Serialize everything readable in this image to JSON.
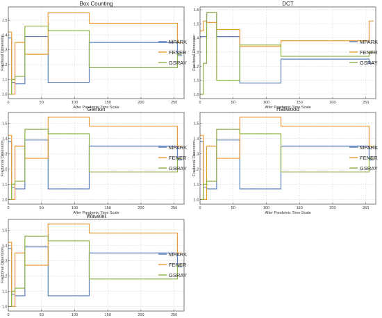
{
  "colors": {
    "MPARK": "#5b7fbf",
    "FENER": "#ec9a36",
    "GSRAY": "#8db146",
    "grid": "#d9d9d9",
    "frame": "#555555"
  },
  "chart_data": [
    {
      "type": "line",
      "title": "Box Counting",
      "xlabel": "After Pandemic Time Scale",
      "ylabel": "Fractional Dimension",
      "xlim": [
        0,
        265
      ],
      "ylim": [
        0.97,
        1.59
      ],
      "xticks": [
        0,
        50,
        100,
        150,
        200,
        250
      ],
      "yticks": [
        1.0,
        1.1,
        1.2,
        1.3,
        1.4,
        1.5
      ],
      "grid": true,
      "legend": "right",
      "series": [
        {
          "name": "MPARK",
          "step_x": [
            0,
            5,
            10,
            25,
            60,
            122,
            255,
            262
          ],
          "step_y": [
            1.38,
            1.08,
            1.07,
            1.39,
            1.08,
            1.35,
            1.26,
            1.26
          ]
        },
        {
          "name": "FENER",
          "step_x": [
            0,
            5,
            10,
            25,
            60,
            122,
            255,
            262
          ],
          "step_y": [
            1.42,
            1.0,
            1.35,
            1.27,
            1.55,
            1.48,
            1.35,
            1.35
          ]
        },
        {
          "name": "GSRAY",
          "step_x": [
            0,
            5,
            10,
            25,
            60,
            122,
            255,
            262
          ],
          "step_y": [
            1.0,
            1.1,
            1.12,
            1.46,
            1.43,
            1.18,
            1.27,
            1.27
          ]
        }
      ]
    },
    {
      "type": "line",
      "title": "DCT",
      "xlabel": "After Pandemic Time Scale",
      "ylabel": "Fractional Dimension",
      "xlim": [
        0,
        265
      ],
      "ylim": [
        0.97,
        1.62
      ],
      "xticks": [
        0,
        50,
        100,
        150,
        200,
        250
      ],
      "yticks": [
        1.0,
        1.1,
        1.2,
        1.3,
        1.4,
        1.5,
        1.6
      ],
      "grid": true,
      "legend": "right",
      "series": [
        {
          "name": "MPARK",
          "step_x": [
            0,
            5,
            10,
            25,
            60,
            122,
            255,
            262
          ],
          "step_y": [
            1.41,
            1.41,
            1.58,
            1.41,
            1.08,
            1.25,
            1.22,
            1.22
          ]
        },
        {
          "name": "FENER",
          "step_x": [
            0,
            5,
            10,
            25,
            60,
            122,
            255,
            262
          ],
          "step_y": [
            1.45,
            1.52,
            1.51,
            1.46,
            1.34,
            1.38,
            1.52,
            1.52
          ]
        },
        {
          "name": "GSRAY",
          "step_x": [
            0,
            5,
            10,
            25,
            60,
            122,
            255,
            262
          ],
          "step_y": [
            1.0,
            1.22,
            1.58,
            1.1,
            1.35,
            1.27,
            1.3,
            1.3
          ]
        }
      ]
    },
    {
      "type": "line",
      "title": "Genton",
      "xlabel": "After Pandemic Time Scale",
      "ylabel": "Fractional Dimension",
      "xlim": [
        0,
        265
      ],
      "ylim": [
        0.97,
        1.57
      ],
      "xticks": [
        0,
        50,
        100,
        150,
        200,
        250
      ],
      "yticks": [
        1.0,
        1.1,
        1.2,
        1.3,
        1.4,
        1.5
      ],
      "grid": true,
      "legend": "right",
      "series": [
        {
          "name": "MPARK",
          "step_x": [
            0,
            5,
            10,
            25,
            60,
            122,
            255,
            262
          ],
          "step_y": [
            1.38,
            1.08,
            1.07,
            1.39,
            1.07,
            1.35,
            1.26,
            1.26
          ]
        },
        {
          "name": "FENER",
          "step_x": [
            0,
            5,
            10,
            25,
            60,
            122,
            255,
            262
          ],
          "step_y": [
            1.42,
            1.0,
            1.35,
            1.27,
            1.54,
            1.48,
            1.35,
            1.35
          ]
        },
        {
          "name": "GSRAY",
          "step_x": [
            0,
            5,
            10,
            25,
            60,
            122,
            255,
            262
          ],
          "step_y": [
            1.0,
            1.1,
            1.12,
            1.46,
            1.43,
            1.18,
            1.27,
            1.27
          ]
        }
      ]
    },
    {
      "type": "line",
      "title": "Hallwood",
      "xlabel": "After Pandemic Time Scale",
      "ylabel": "Fractional Dimension",
      "xlim": [
        0,
        265
      ],
      "ylim": [
        0.97,
        1.57
      ],
      "xticks": [
        0,
        50,
        100,
        150,
        200,
        250
      ],
      "yticks": [
        1.0,
        1.1,
        1.2,
        1.3,
        1.4,
        1.5
      ],
      "grid": true,
      "legend": "right",
      "series": [
        {
          "name": "MPARK",
          "step_x": [
            0,
            5,
            10,
            25,
            60,
            122,
            255,
            262
          ],
          "step_y": [
            1.38,
            1.08,
            1.07,
            1.39,
            1.07,
            1.35,
            1.26,
            1.26
          ]
        },
        {
          "name": "FENER",
          "step_x": [
            0,
            5,
            10,
            25,
            60,
            122,
            255,
            262
          ],
          "step_y": [
            1.42,
            1.0,
            1.35,
            1.27,
            1.54,
            1.48,
            1.35,
            1.35
          ]
        },
        {
          "name": "GSRAY",
          "step_x": [
            0,
            5,
            10,
            25,
            60,
            122,
            255,
            262
          ],
          "step_y": [
            1.0,
            1.1,
            1.12,
            1.46,
            1.43,
            1.18,
            1.27,
            1.27
          ]
        }
      ]
    },
    {
      "type": "line",
      "title": "Wavelet",
      "xlabel": "After Pandemic Time Scale",
      "ylabel": "Fractional Dimension",
      "xlim": [
        0,
        265
      ],
      "ylim": [
        0.97,
        1.57
      ],
      "xticks": [
        0,
        50,
        100,
        150,
        200,
        250
      ],
      "yticks": [
        1.0,
        1.1,
        1.2,
        1.3,
        1.4,
        1.5
      ],
      "grid": true,
      "legend": "right",
      "series": [
        {
          "name": "MPARK",
          "step_x": [
            0,
            5,
            10,
            25,
            60,
            122,
            255,
            262
          ],
          "step_y": [
            1.38,
            1.08,
            1.07,
            1.39,
            1.07,
            1.35,
            1.26,
            1.26
          ]
        },
        {
          "name": "FENER",
          "step_x": [
            0,
            5,
            10,
            25,
            60,
            122,
            255,
            262
          ],
          "step_y": [
            1.42,
            1.0,
            1.35,
            1.27,
            1.54,
            1.48,
            1.35,
            1.35
          ]
        },
        {
          "name": "GSRAY",
          "step_x": [
            0,
            5,
            10,
            25,
            60,
            122,
            255,
            262
          ],
          "step_y": [
            1.0,
            1.1,
            1.12,
            1.46,
            1.43,
            1.18,
            1.27,
            1.27
          ]
        }
      ]
    }
  ]
}
